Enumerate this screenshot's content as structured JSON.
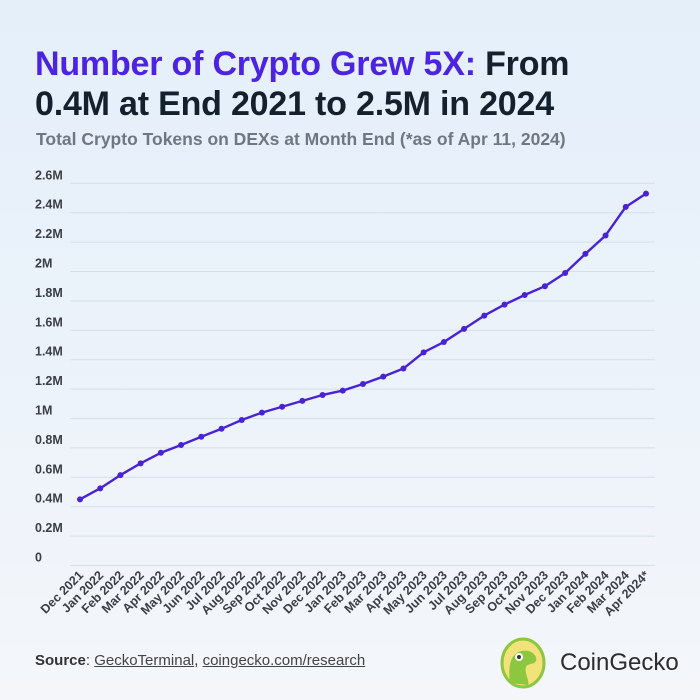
{
  "header": {
    "title_highlight": "Number of Crypto Grew 5X:",
    "title_rest_line1": " From",
    "title_line2": "0.4M at End 2021 to 2.5M in 2024",
    "subtitle": "Total Crypto Tokens on DEXs at Month End (*as of Apr 11, 2024)"
  },
  "chart_data": {
    "type": "line",
    "title": "Number of Crypto Grew 5X: From 0.4M at End 2021 to 2.5M in 2024",
    "subtitle": "Total Crypto Tokens on DEXs at Month End (*as of Apr 11, 2024)",
    "xlabel": "",
    "ylabel": "",
    "ylim": [
      0,
      2.6
    ],
    "y_ticks": [
      "0",
      "0.2M",
      "0.4M",
      "0.6M",
      "0.8M",
      "1M",
      "1.2M",
      "1.4M",
      "1.6M",
      "1.8M",
      "2M",
      "2.2M",
      "2.4M",
      "2.6M"
    ],
    "y_tick_values": [
      0,
      0.2,
      0.4,
      0.6,
      0.8,
      1.0,
      1.2,
      1.4,
      1.6,
      1.8,
      2.0,
      2.2,
      2.4,
      2.6
    ],
    "grid": true,
    "categories": [
      "Dec 2021",
      "Jan 2022",
      "Feb 2022",
      "Mar 2022",
      "Apr 2022",
      "May 2022",
      "Jun 2022",
      "Jul 2022",
      "Aug 2022",
      "Sep 2022",
      "Oct 2022",
      "Nov 2022",
      "Dec 2022",
      "Jan 2023",
      "Feb 2023",
      "Mar 2023",
      "Apr 2023",
      "May 2023",
      "Jun 2023",
      "Jul 2023",
      "Aug 2023",
      "Sep 2023",
      "Oct 2023",
      "Nov 2023",
      "Dec 2023",
      "Jan 2024",
      "Feb 2024",
      "Mar 2024",
      "Apr 2024*"
    ],
    "values": [
      0.45,
      0.525,
      0.615,
      0.695,
      0.767,
      0.82,
      0.876,
      0.93,
      0.99,
      1.04,
      1.08,
      1.12,
      1.16,
      1.19,
      1.235,
      1.285,
      1.34,
      1.45,
      1.52,
      1.61,
      1.7,
      1.775,
      1.84,
      1.9,
      1.99,
      2.12,
      2.245,
      2.44,
      2.53
    ],
    "unit": "M",
    "line_color": "#4a22d6"
  },
  "footer": {
    "source_label": "Source",
    "source_sep": ": ",
    "link1": "GeckoTerminal",
    "comma": ", ",
    "link2": "coingecko.com/research"
  },
  "brand": {
    "name": "CoinGecko",
    "logo_icon": "coingecko-gecko-logo"
  }
}
